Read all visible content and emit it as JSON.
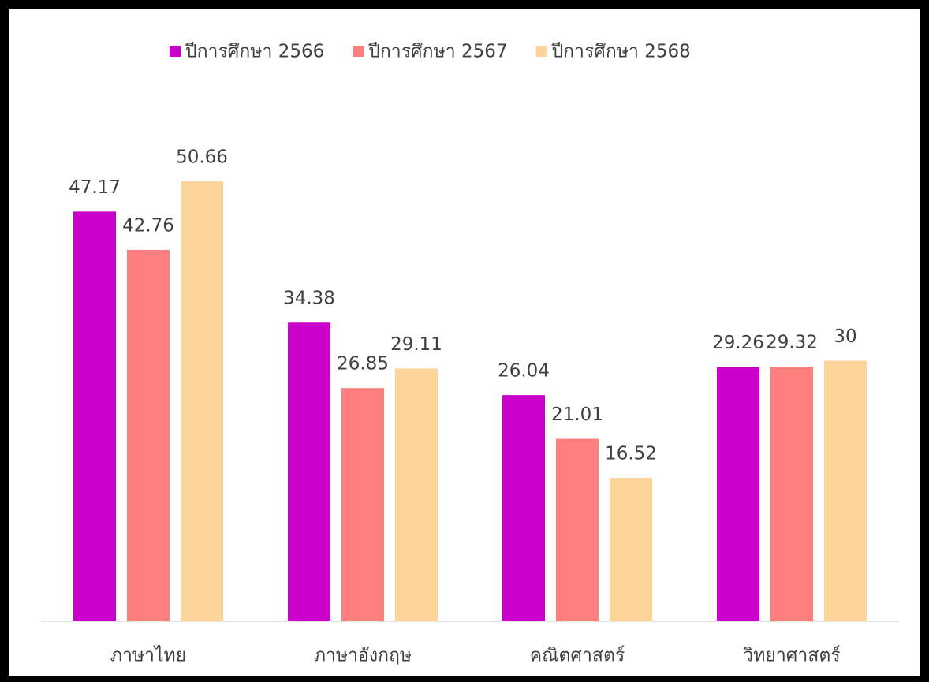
{
  "chart_data": {
    "type": "bar",
    "categories": [
      "ภาษาไทย",
      "ภาษาอังกฤษ",
      "คณิตศาสตร์",
      "วิทยาศาสตร์"
    ],
    "series": [
      {
        "name": "ปีการศึกษา 2566",
        "color": "#cc00cc",
        "values": [
          47.17,
          34.38,
          26.04,
          29.26
        ]
      },
      {
        "name": "ปีการศึกษา 2567",
        "color": "#ff7f7f",
        "values": [
          42.76,
          26.85,
          21.01,
          29.32
        ]
      },
      {
        "name": "ปีการศึกษา 2568",
        "color": "#fdd59a",
        "values": [
          50.66,
          29.11,
          16.52,
          30
        ]
      }
    ],
    "ylim": [
      0,
      60
    ],
    "legend": "top",
    "grid": false
  }
}
